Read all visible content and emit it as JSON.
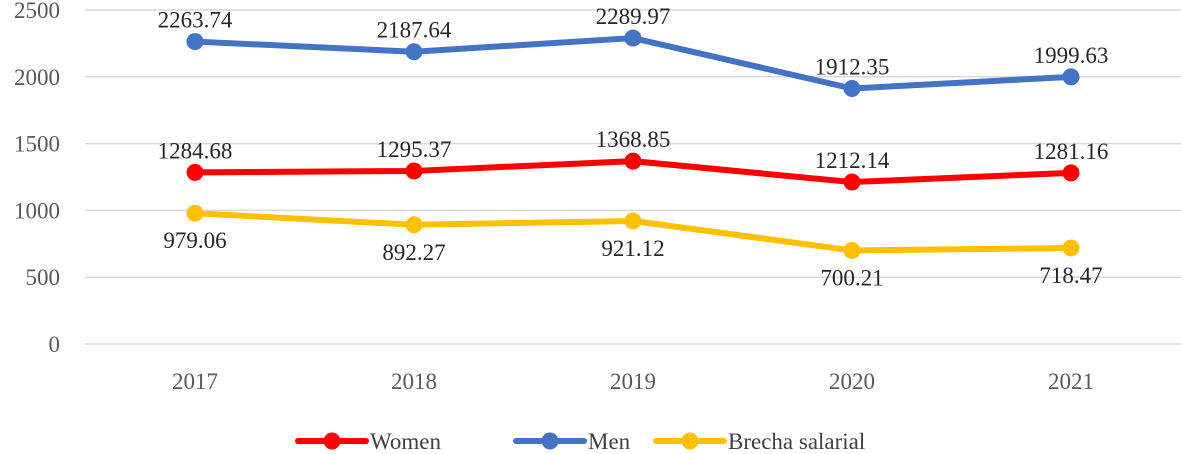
{
  "chart_data": {
    "type": "line",
    "title": "",
    "xlabel": "",
    "ylabel": "",
    "categories": [
      "2017",
      "2018",
      "2019",
      "2020",
      "2021"
    ],
    "ylim": [
      0,
      2500
    ],
    "yticks": [
      "0",
      "500",
      "1000",
      "1500",
      "2000",
      "2500"
    ],
    "grid": true,
    "legend_position": "bottom",
    "series": [
      {
        "name": "Women",
        "color": "#ff0000",
        "values": [
          1284.68,
          1295.37,
          1368.85,
          1212.14,
          1281.16
        ],
        "labels": [
          "1284.68",
          "1295.37",
          "1368.85",
          "1212.14",
          "1281.16"
        ],
        "label_position": "above"
      },
      {
        "name": "Men",
        "color": "#4472c4",
        "values": [
          2263.74,
          2187.64,
          2289.97,
          1912.35,
          1999.63
        ],
        "labels": [
          "2263.74",
          "2187.64",
          "2289.97",
          "1912.35",
          "1999.63"
        ],
        "label_position": "above"
      },
      {
        "name": "Brecha salarial",
        "color": "#ffc000",
        "values": [
          979.06,
          892.27,
          921.12,
          700.21,
          718.47
        ],
        "labels": [
          "979.06",
          "892.27",
          "921.12",
          "700.21",
          "718.47"
        ],
        "label_position": "below"
      }
    ]
  }
}
